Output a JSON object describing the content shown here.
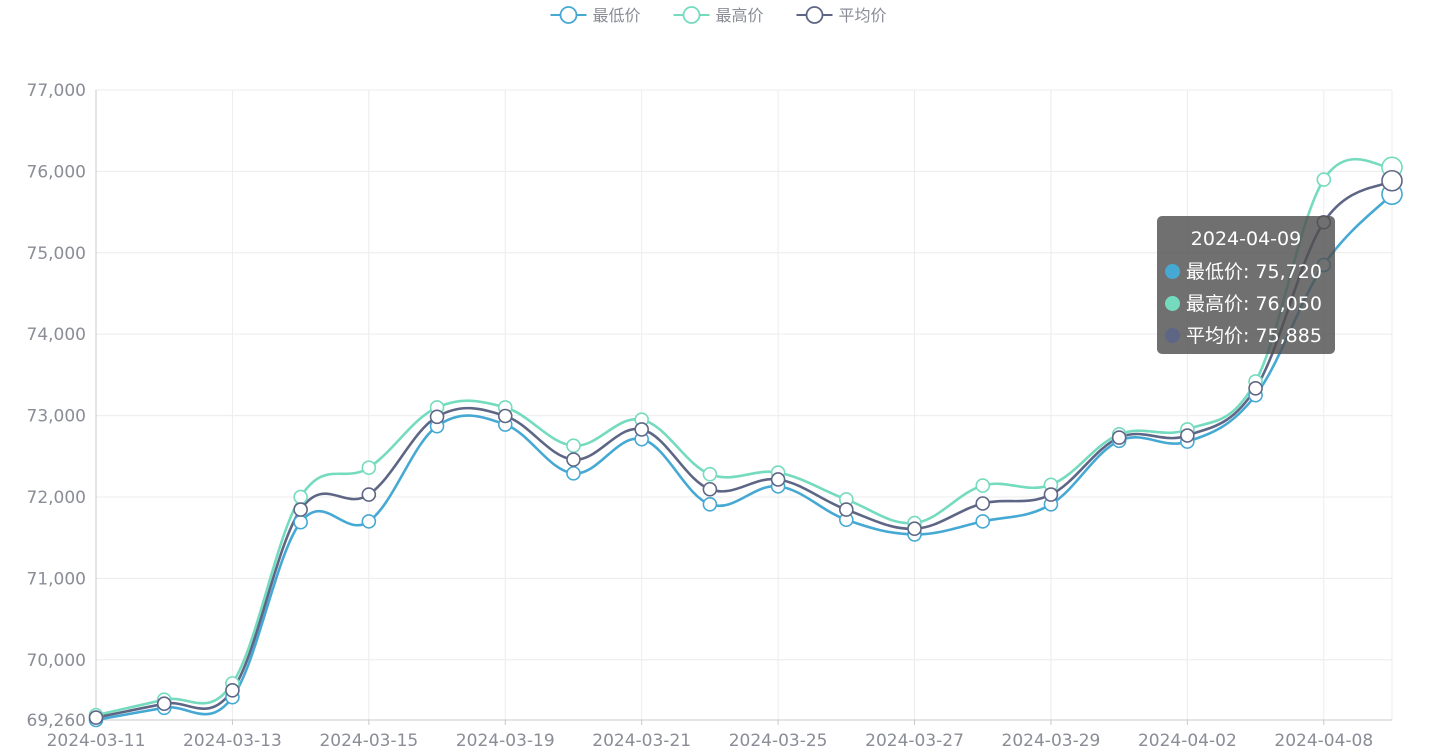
{
  "chart_data": {
    "type": "line",
    "smooth": true,
    "title": "",
    "xlabel": "",
    "ylabel": "",
    "x": [
      "2024-03-11",
      "2024-03-12",
      "2024-03-13",
      "2024-03-14",
      "2024-03-15",
      "2024-03-16",
      "2024-03-19",
      "2024-03-20",
      "2024-03-21",
      "2024-03-22",
      "2024-03-25",
      "2024-03-26",
      "2024-03-27",
      "2024-03-28",
      "2024-03-29",
      "2024-04-01",
      "2024-04-02",
      "2024-04-03",
      "2024-04-08",
      "2024-04-09"
    ],
    "x_tick_labels": [
      "2024-03-11",
      "2024-03-13",
      "2024-03-15",
      "2024-03-19",
      "2024-03-21",
      "2024-03-25",
      "2024-03-27",
      "2024-03-29",
      "2024-04-02",
      "2024-04-08"
    ],
    "ylim": [
      69260,
      77000
    ],
    "y_ticks": [
      69260,
      70000,
      71000,
      72000,
      73000,
      74000,
      75000,
      76000,
      77000
    ],
    "y_tick_labels": [
      "69,260",
      "70,000",
      "71,000",
      "72,000",
      "73,000",
      "74,000",
      "75,000",
      "76,000",
      "77,000"
    ],
    "legend_position": "top-center",
    "grid": true,
    "series": [
      {
        "name": "最低价",
        "color": "#45a9d4",
        "values": [
          69260,
          69410,
          69540,
          71690,
          71700,
          72870,
          72890,
          72290,
          72710,
          71910,
          72130,
          71720,
          71540,
          71700,
          71910,
          72690,
          72680,
          73250,
          74850,
          75720
        ]
      },
      {
        "name": "最高价",
        "color": "#74dbbf",
        "values": [
          69320,
          69510,
          69710,
          72000,
          72360,
          73100,
          73100,
          72630,
          72950,
          72280,
          72300,
          71970,
          71680,
          72140,
          72150,
          72770,
          72830,
          73420,
          75900,
          76050
        ]
      },
      {
        "name": "平均价",
        "color": "#5e6685",
        "values": [
          69290,
          69460,
          69625,
          71845,
          72030,
          72985,
          72995,
          72460,
          72830,
          72095,
          72215,
          71845,
          71610,
          71920,
          72030,
          72730,
          72755,
          73335,
          75375,
          75885
        ]
      }
    ]
  },
  "tooltip": {
    "date": "2024-04-09",
    "rows": [
      {
        "text": "最低价: 75,720",
        "color": "#45a9d4"
      },
      {
        "text": "最高价: 76,050",
        "color": "#74dbbf"
      },
      {
        "text": "平均价: 75,885",
        "color": "#5e6685"
      }
    ]
  }
}
